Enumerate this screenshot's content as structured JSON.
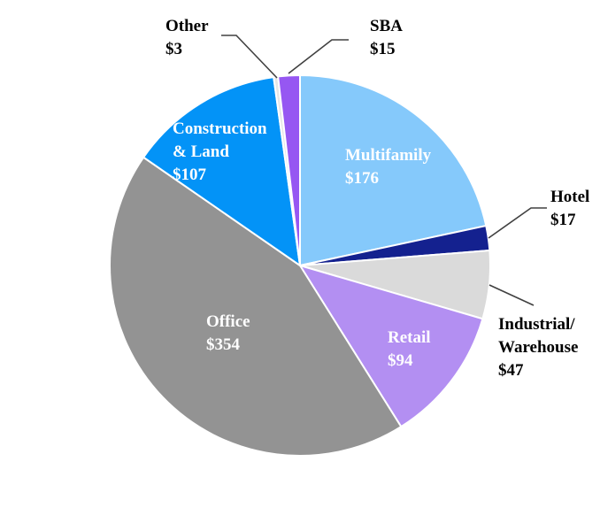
{
  "chart_data": {
    "type": "pie",
    "title": "",
    "unit_prefix": "$",
    "slices": [
      {
        "label": "Multifamily",
        "display_lines": [
          "Multifamily"
        ],
        "value": 176,
        "value_label": "$176",
        "color": "#85c9fb",
        "label_position": "inside"
      },
      {
        "label": "Hotel",
        "display_lines": [
          "Hotel"
        ],
        "value": 17,
        "value_label": "$17",
        "color": "#14218f",
        "label_position": "outside"
      },
      {
        "label": "Industrial/ Warehouse",
        "display_lines": [
          "Industrial/",
          "Warehouse"
        ],
        "value": 47,
        "value_label": "$47",
        "color": "#dadada",
        "label_position": "outside"
      },
      {
        "label": "Retail",
        "display_lines": [
          "Retail"
        ],
        "value": 94,
        "value_label": "$94",
        "color": "#b38ff2",
        "label_position": "inside"
      },
      {
        "label": "Office",
        "display_lines": [
          "Office"
        ],
        "value": 354,
        "value_label": "$354",
        "color": "#939393",
        "label_position": "inside"
      },
      {
        "label": "Construction & Land",
        "display_lines": [
          "Construction",
          "& Land"
        ],
        "value": 107,
        "value_label": "$107",
        "color": "#0393f7",
        "label_position": "inside"
      },
      {
        "label": "Other",
        "display_lines": [
          "Other"
        ],
        "value": 3,
        "value_label": "$3",
        "color": "#e6e6e6",
        "label_position": "outside"
      },
      {
        "label": "SBA",
        "display_lines": [
          "SBA"
        ],
        "value": 15,
        "value_label": "$15",
        "color": "#9657f2",
        "label_position": "outside"
      }
    ]
  }
}
